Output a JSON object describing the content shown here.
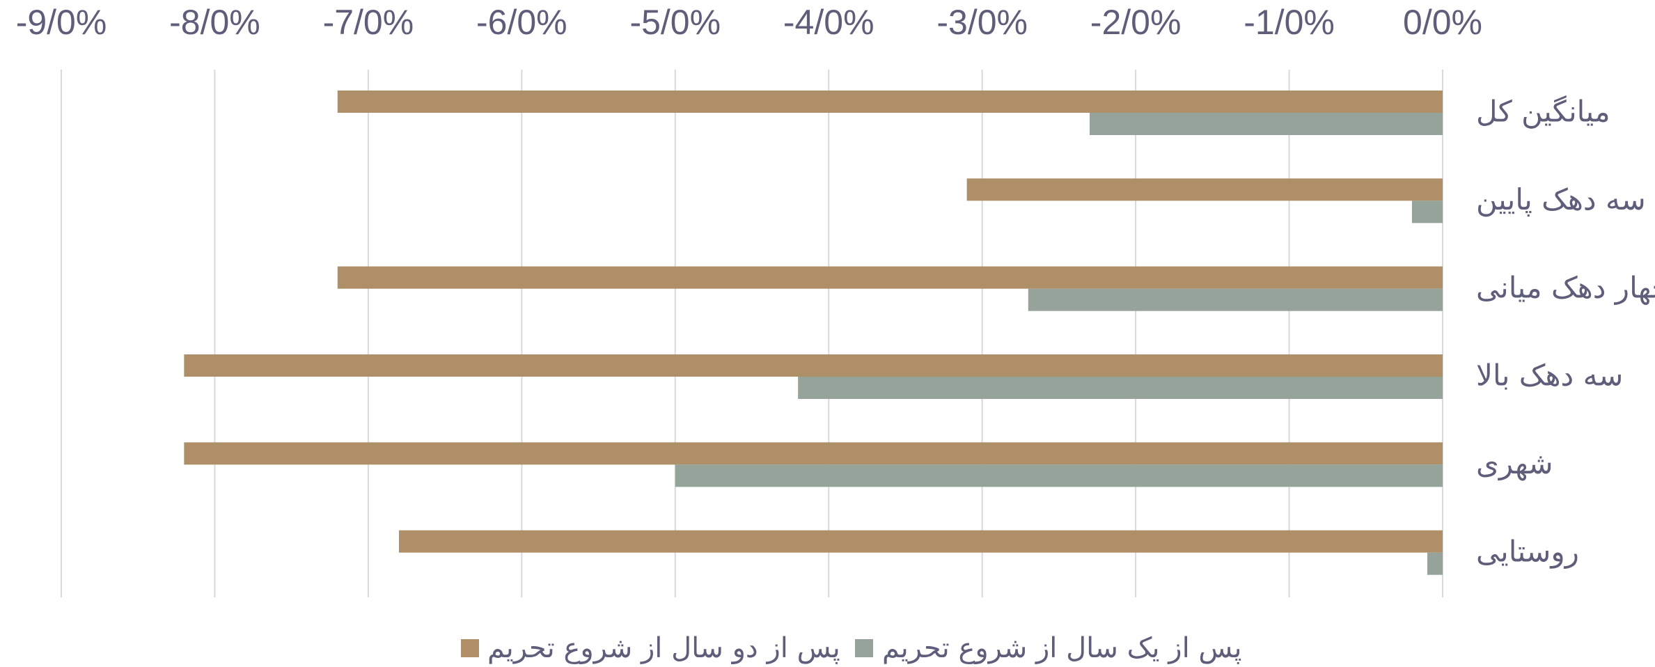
{
  "chart_data": {
    "type": "bar",
    "orientation": "horizontal",
    "categories": [
      "میانگین کل",
      "سه دهک پایین",
      "چهار دهک میانی",
      "سه دهک بالا",
      "شهری",
      "روستایی"
    ],
    "series": [
      {
        "name": "پس از دو سال از شروع تحریم",
        "color": "#ae8f68",
        "values": [
          -7.2,
          -3.1,
          -7.2,
          -8.2,
          -8.2,
          -6.8
        ]
      },
      {
        "name": "پس از یک سال از شروع تحریم",
        "color": "#95a39a",
        "values": [
          -2.3,
          -0.2,
          -2.7,
          -4.2,
          -5.0,
          -0.1
        ]
      }
    ],
    "xlim": [
      -9,
      0
    ],
    "xticks": [
      {
        "value": -9,
        "label": "-9/0%"
      },
      {
        "value": -8,
        "label": "-8/0%"
      },
      {
        "value": -7,
        "label": "-7/0%"
      },
      {
        "value": -6,
        "label": "-6/0%"
      },
      {
        "value": -5,
        "label": "-5/0%"
      },
      {
        "value": -4,
        "label": "-4/0%"
      },
      {
        "value": -3,
        "label": "-3/0%"
      },
      {
        "value": -2,
        "label": "-2/0%"
      },
      {
        "value": -1,
        "label": "-1/0%"
      },
      {
        "value": 0,
        "label": "0/0%"
      }
    ],
    "grid": true,
    "legend": "bottom"
  }
}
